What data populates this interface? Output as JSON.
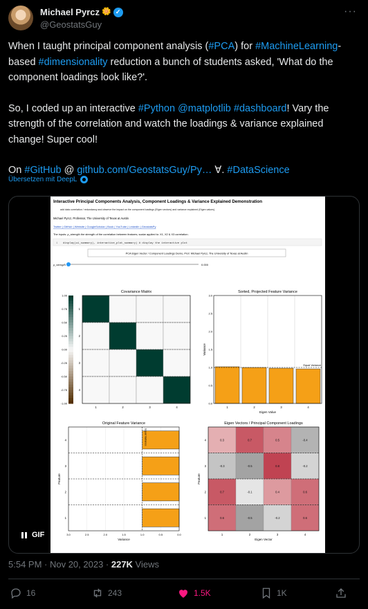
{
  "author": {
    "name": "Michael Pyrcz",
    "handle": "@GeostatsGuy",
    "badge_emoji": "🌼"
  },
  "tweet": {
    "p1": [
      {
        "t": "When I taught principal component analysis (",
        "link": false
      },
      {
        "t": "#PCA",
        "link": true
      },
      {
        "t": ") for ",
        "link": false
      },
      {
        "t": "#MachineLearning",
        "link": true
      },
      {
        "t": "-based ",
        "link": false
      },
      {
        "t": "#dimensionality",
        "link": true
      },
      {
        "t": " reduction a bunch of students asked, 'What do the component loadings look like?'.",
        "link": false
      }
    ],
    "p2": [
      {
        "t": "So, I coded up an interactive ",
        "link": false
      },
      {
        "t": "#Python",
        "link": true
      },
      {
        "t": " ",
        "link": false
      },
      {
        "t": "@matplotlib",
        "link": true
      },
      {
        "t": " ",
        "link": false
      },
      {
        "t": "#dashboard",
        "link": true
      },
      {
        "t": "! Vary the strength of the correlation and watch the loadings & variance explained change! Super cool!",
        "link": false
      }
    ],
    "p3": [
      {
        "t": "On ",
        "link": false
      },
      {
        "t": "#GitHub",
        "link": true
      },
      {
        "t": " @ ",
        "link": false
      },
      {
        "t": "github.com/GeostatsGuy/Py…",
        "link": true
      },
      {
        "t": " ∀. ",
        "link": false
      },
      {
        "t": "#DataScience",
        "link": true
      }
    ]
  },
  "translate_label": "Übersetzen mit DeepL",
  "media": {
    "gif_label": "GIF",
    "title": "Interactive Principal Components Analysis, Component Loadings & Variance Explained Demonstration",
    "bullet": "add data correlation / redundancy and observe the impact on the component loadings (Eigen vectors) and variance explained (Eigen values).",
    "byline": "Michael Pyrcz, Professor, The University of Texas at Austin",
    "links": "Twitter | GitHub | Website | GoogleScholar | Book | YouTube | LinkedIn | GeostatsPy",
    "inputs_line": "The inputs: ρ_strength the strength of the correlation between features, scalar applied to: X1, X2 & X3 correlation.",
    "code": "display(ui_summary), interactive_plot_summary)       # display the interactive plot",
    "code_num": "1",
    "banner": "PCA Eigen Vector / Component Loadings Demo, Prof. Michael Pyrcz, The University of Texas at Austin",
    "slider_label": "ρ_strength",
    "slider_value_text": "0.000",
    "slider_value": 0.0
  },
  "chart_data": [
    {
      "type": "heatmap",
      "title": "Covariance Matrix",
      "x_ticks": [
        "1",
        "2",
        "3",
        "4"
      ],
      "y_ticks": [
        "1",
        "2",
        "3",
        "4"
      ],
      "values": [
        [
          1,
          0,
          0,
          0
        ],
        [
          0,
          1,
          0,
          0
        ],
        [
          0,
          0,
          1,
          0
        ],
        [
          0,
          0,
          0,
          1
        ]
      ],
      "colorbar_ticks": [
        "1.00",
        "0.75",
        "0.50",
        "0.25",
        "0.00",
        "-0.25",
        "-0.50",
        "-0.75",
        "-1.00"
      ],
      "range": [
        -1,
        1
      ],
      "colormap": "BrBG"
    },
    {
      "type": "bar",
      "title": "Sorted, Projected Feature Variance",
      "xlabel": "Eigen Value",
      "ylabel": "Variance",
      "categories": [
        "1",
        "2",
        "3",
        "4"
      ],
      "values": [
        1.02,
        1.0,
        0.98,
        0.96
      ],
      "ylim": [
        0,
        3.0
      ],
      "y_ticks": [
        "0.0",
        "0.5",
        "1.0",
        "1.5",
        "2.0",
        "2.5",
        "3.0"
      ],
      "reference_line": {
        "y": 1.0,
        "label": "Equal Variance"
      },
      "bar_color": "#f5a017"
    },
    {
      "type": "bar",
      "orientation": "horizontal",
      "title": "Original Feature Variance",
      "xlabel": "Variance",
      "ylabel": "Feature",
      "categories": [
        "1",
        "2",
        "3",
        "4"
      ],
      "values": [
        1.0,
        1.0,
        1.0,
        1.0
      ],
      "xlim": [
        3.0,
        0.0
      ],
      "x_ticks": [
        "3.0",
        "2.5",
        "2.0",
        "1.5",
        "1.0",
        "0.5",
        "0.0"
      ],
      "reference_line": {
        "x": 1.0,
        "label": "Equal Variance"
      },
      "bar_color": "#f5a017"
    },
    {
      "type": "heatmap",
      "title": "Eigen Vectors / Principal Component Loadings",
      "xlabel": "Eigen Vector",
      "ylabel": "Feature",
      "x_ticks": [
        "1",
        "2",
        "3",
        "4"
      ],
      "y_ticks": [
        "4",
        "3",
        "2",
        "1"
      ],
      "rows": [
        [
          "0.3",
          "0.7",
          "0.5",
          "-0.4"
        ],
        [
          "-0.3",
          "-0.5",
          "0.8",
          "-0.2"
        ],
        [
          "0.7",
          "-0.1",
          "0.4",
          "0.6"
        ],
        [
          "0.6",
          "-0.5",
          "-0.2",
          "0.6"
        ]
      ],
      "values": [
        [
          0.3,
          0.7,
          0.5,
          -0.4
        ],
        [
          -0.3,
          -0.5,
          0.8,
          -0.2
        ],
        [
          0.7,
          -0.1,
          0.4,
          0.6
        ],
        [
          0.6,
          -0.5,
          -0.2,
          0.6
        ]
      ],
      "range": [
        -1,
        1
      ]
    }
  ],
  "timestamp": "5:54 PM · Nov 20, 2023 · ",
  "views_count": "227K",
  "views_label": " Views",
  "actions": {
    "replies": "16",
    "reposts": "243",
    "likes": "1.5K",
    "bookmarks": "1K"
  },
  "colors": {
    "link": "#1d9bf0",
    "like": "#f91880",
    "muted": "#71767b",
    "bar": "#f5a017"
  }
}
